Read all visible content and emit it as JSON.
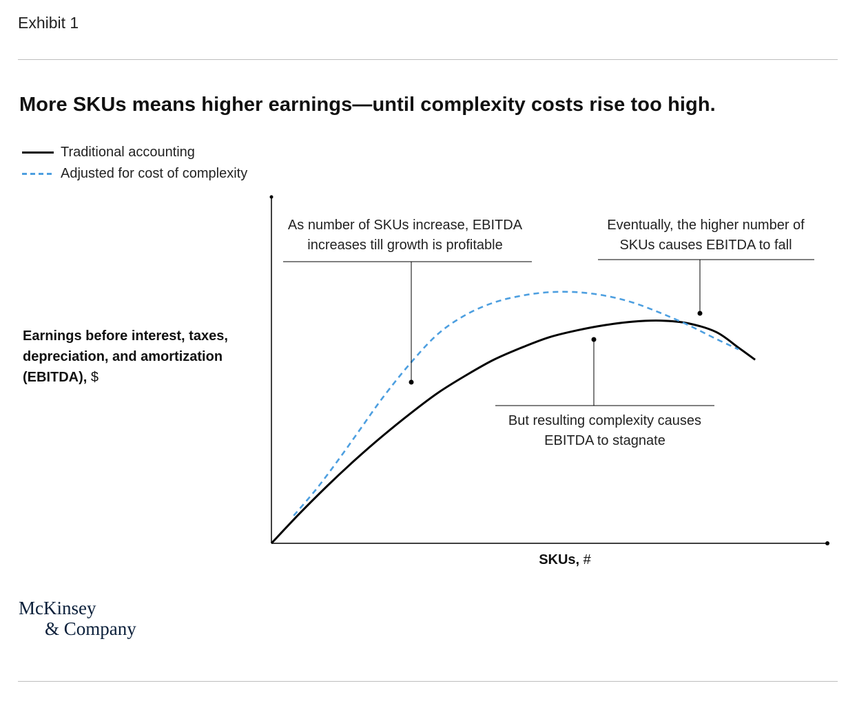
{
  "header": {
    "exhibit": "Exhibit 1",
    "headline": "More SKUs means higher earnings—until complexity costs rise too high."
  },
  "legend": {
    "traditional": "Traditional accounting",
    "adjusted": "Adjusted for cost of complexity"
  },
  "axes": {
    "ylabel_bold": "Earnings before interest, taxes, depreciation, and amortization (EBITDA),",
    "ylabel_unit": "$",
    "xlabel_bold": "SKUs,",
    "xlabel_unit": "#"
  },
  "annotations": {
    "rise": "As number of SKUs increase, EBITDA increases till growth is profitable",
    "fall": "Eventually, the higher number of SKUs causes EBITDA to fall",
    "stagnate": "But resulting complexity causes EBITDA to stagnate"
  },
  "logo": {
    "line1": "McKinsey",
    "line2": "& Company"
  },
  "colors": {
    "traditional": "#000000",
    "adjusted": "#4d9fe0",
    "rule": "#bdbdbd"
  },
  "chart_data": {
    "type": "line",
    "title": "More SKUs means higher earnings—until complexity costs rise too high.",
    "xlabel": "SKUs, #",
    "ylabel": "Earnings before interest, taxes, depreciation, and amortization (EBITDA), $",
    "xlim": [
      0,
      100
    ],
    "ylim": [
      0,
      100
    ],
    "grid": false,
    "legend_position": "top-left",
    "series": [
      {
        "name": "Traditional accounting",
        "style": "solid",
        "x": [
          0,
          5,
          10,
          15,
          20,
          25,
          30,
          35,
          40,
          45,
          50,
          55,
          60,
          65,
          70,
          75,
          80,
          84,
          87
        ],
        "y": [
          0,
          8.5,
          16.5,
          24,
          31,
          37.5,
          43.5,
          48.5,
          53,
          56.5,
          59.5,
          61.5,
          63,
          64,
          64.3,
          63.5,
          61,
          56.5,
          53
        ]
      },
      {
        "name": "Adjusted for cost of complexity",
        "style": "dashed",
        "x": [
          4,
          8,
          12,
          16,
          20,
          25,
          30,
          35,
          40,
          45,
          50,
          55,
          60,
          65,
          70,
          75,
          80,
          84
        ],
        "y": [
          8,
          15.5,
          24,
          33,
          42,
          52,
          60.5,
          66,
          69.5,
          71.5,
          72.5,
          72.5,
          71.5,
          69.5,
          66.5,
          63,
          59,
          56
        ]
      }
    ]
  }
}
